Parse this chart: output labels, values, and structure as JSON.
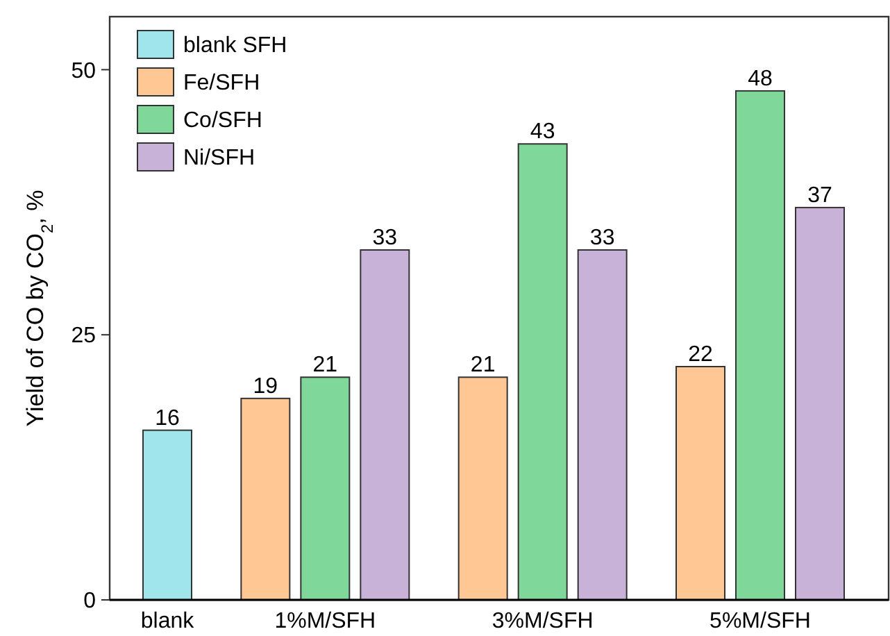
{
  "chart_data": {
    "type": "bar",
    "ylabel": "Yield of CO by CO$_{2}$, %",
    "categories": [
      "blank",
      "1%M/SFH",
      "3%M/SFH",
      "5%M/SFH"
    ],
    "series": [
      {
        "name": "blank SFH",
        "color": "#a0e5eb",
        "values": [
          16,
          null,
          null,
          null
        ]
      },
      {
        "name": "Fe/SFH",
        "color": "#fec793",
        "values": [
          null,
          19,
          21,
          22
        ]
      },
      {
        "name": "Co/SFH",
        "color": "#7fd899",
        "values": [
          null,
          21,
          43,
          48
        ]
      },
      {
        "name": "Ni/SFH",
        "color": "#c8b2d7",
        "values": [
          null,
          33,
          33,
          37
        ]
      }
    ],
    "ylim": [
      0,
      55
    ],
    "yticks": [
      0,
      25,
      50
    ],
    "data_labels": true,
    "legend": "top left",
    "grid": false
  }
}
